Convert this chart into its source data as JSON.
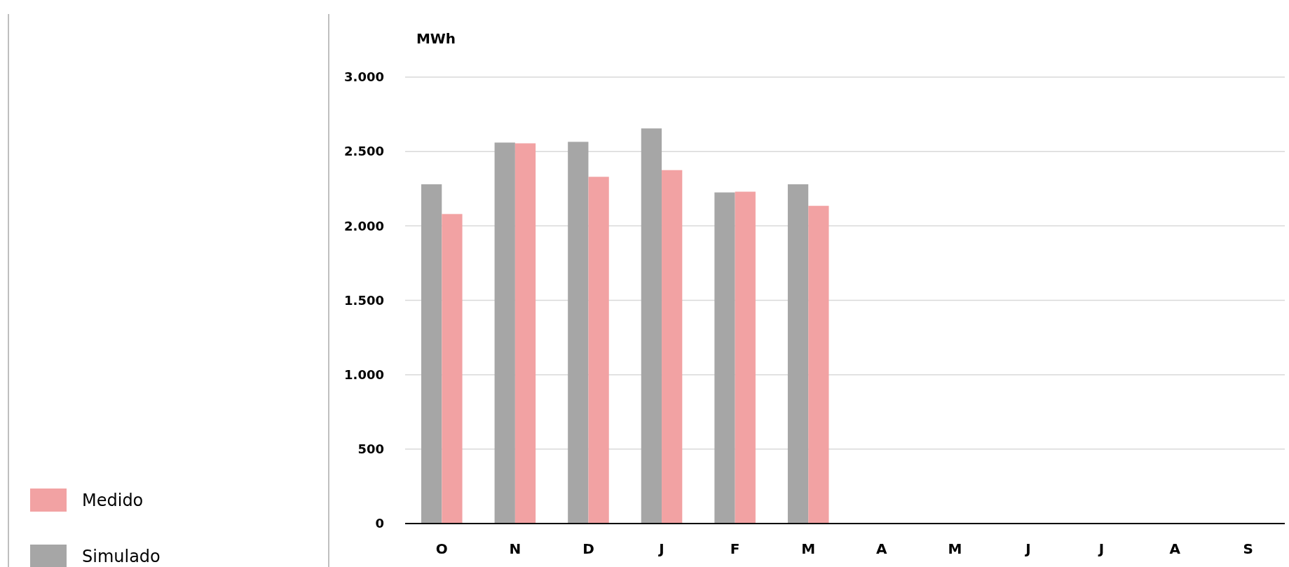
{
  "chart_data": {
    "type": "bar",
    "ylabel": "MWh",
    "categories": [
      "O",
      "N",
      "D",
      "J",
      "F",
      "M",
      "A",
      "M",
      "J",
      "J",
      "A",
      "S"
    ],
    "series": [
      {
        "name": "Simulado",
        "color": "#a6a6a6",
        "values": [
          2280,
          2560,
          2565,
          2655,
          2225,
          2280,
          null,
          null,
          null,
          null,
          null,
          null
        ]
      },
      {
        "name": "Medido",
        "color": "#f2a2a3",
        "values": [
          2080,
          2555,
          2330,
          2375,
          2230,
          2135,
          null,
          null,
          null,
          null,
          null,
          null
        ]
      }
    ],
    "ylim": [
      0,
      3000
    ],
    "yticks": [
      {
        "value": 0,
        "label": "0"
      },
      {
        "value": 500,
        "label": "500"
      },
      {
        "value": 1000,
        "label": "1.000"
      },
      {
        "value": 1500,
        "label": "1.500"
      },
      {
        "value": 2000,
        "label": "2.000"
      },
      {
        "value": 2500,
        "label": "2.500"
      },
      {
        "value": 3000,
        "label": "3.000"
      }
    ],
    "grid": "y",
    "legend": "bottom left"
  }
}
